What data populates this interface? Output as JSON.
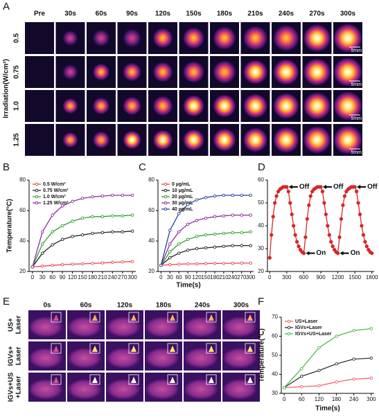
{
  "panel_a": {
    "panel": "A",
    "y_label": "Irradiation(W/cm²)",
    "columns": [
      "Pre",
      "30s",
      "60s",
      "90s",
      "120s",
      "150s",
      "180s",
      "210s",
      "240s",
      "270s",
      "300s"
    ],
    "rows": [
      "0.5",
      "0.75",
      "1.0",
      "1.25"
    ],
    "scale_bar": "5mm"
  },
  "time_label": "Time(s)",
  "panel_e": {
    "panel": "E",
    "columns": [
      "0s",
      "60s",
      "120s",
      "180s",
      "240s",
      "300s"
    ],
    "rows": [
      [
        "US+",
        "Laser"
      ],
      [
        "IGVs+",
        "Laser"
      ],
      [
        "IGVs+US",
        "+Laser"
      ]
    ]
  },
  "chart_data": [
    {
      "type": "line",
      "panel": "B",
      "y_label": "Temperature(°C)",
      "legend": "upper left",
      "x": [
        0,
        30,
        60,
        90,
        120,
        150,
        180,
        210,
        240,
        270,
        300
      ],
      "xlim": [
        -10,
        310
      ],
      "ylim": [
        20,
        80
      ],
      "xticks": [
        0,
        30,
        60,
        90,
        120,
        150,
        180,
        210,
        240,
        270,
        300
      ],
      "yticks": [
        20,
        40,
        60,
        80
      ],
      "series": [
        {
          "name": "0.5 W/cm²",
          "color": "#e8474c",
          "values": [
            23,
            23.5,
            24,
            24.5,
            24.8,
            25,
            25.3,
            25.6,
            26,
            26.3,
            26.5
          ]
        },
        {
          "name": "0.75 W/cm²",
          "color": "#222222",
          "values": [
            23,
            32,
            37.5,
            41,
            43,
            44,
            45,
            45.5,
            46,
            46,
            46.5
          ]
        },
        {
          "name": "1.0 W/cm²",
          "color": "#2ca02c",
          "values": [
            23,
            38,
            46,
            50,
            53,
            55,
            56,
            56,
            56.5,
            56.5,
            57
          ]
        },
        {
          "name": "1.25 W/cm²",
          "color": "#8e2a9e",
          "values": [
            23,
            46,
            57,
            63,
            66,
            68,
            69,
            69.5,
            70,
            70,
            70
          ]
        }
      ]
    },
    {
      "type": "line",
      "panel": "C",
      "legend": "upper left",
      "x": [
        0,
        30,
        60,
        90,
        120,
        150,
        180,
        210,
        240,
        270,
        300
      ],
      "xlim": [
        -10,
        310
      ],
      "ylim": [
        20,
        80
      ],
      "xticks": [
        0,
        30,
        60,
        90,
        120,
        150,
        180,
        210,
        240,
        270,
        300
      ],
      "yticks": [
        20,
        40,
        60,
        80
      ],
      "series": [
        {
          "name": "0 µg/mL",
          "color": "#e8474c",
          "values": [
            24,
            24.5,
            24.8,
            25,
            25,
            25.2,
            25.3,
            25.3,
            25.4,
            25.5,
            25.5
          ]
        },
        {
          "name": "10 µg/mL",
          "color": "#222222",
          "values": [
            24,
            29,
            32,
            34,
            35,
            35.5,
            36,
            36.5,
            37,
            37,
            37
          ]
        },
        {
          "name": "20 µg/mL",
          "color": "#2ca02c",
          "values": [
            24,
            33,
            38,
            41,
            43,
            44,
            44.5,
            45,
            45.5,
            45.5,
            46
          ]
        },
        {
          "name": "30 µg/mL",
          "color": "#8e2a9e",
          "values": [
            24,
            38,
            46,
            51,
            53.5,
            55,
            56,
            56.5,
            57,
            57,
            57
          ]
        },
        {
          "name": "40 µg/mL",
          "color": "#2a3f9e",
          "values": [
            24,
            47,
            58,
            64,
            67,
            68.5,
            69.5,
            70,
            70,
            70,
            70
          ]
        }
      ]
    },
    {
      "type": "line",
      "panel": "D",
      "annotations": [
        "Off",
        "On",
        "Off",
        "On",
        "Off"
      ],
      "x": [
        0,
        30,
        60,
        90,
        120,
        150,
        180,
        210,
        240,
        270,
        300,
        330,
        360,
        390,
        420,
        450,
        480,
        510,
        540,
        570,
        600,
        630,
        660,
        690,
        720,
        750,
        780,
        810,
        840,
        870,
        900,
        930,
        960,
        990,
        1020,
        1050,
        1080,
        1110,
        1140,
        1170,
        1200,
        1230,
        1260,
        1290,
        1320,
        1350,
        1380,
        1410,
        1440,
        1470,
        1500,
        1530,
        1560,
        1590,
        1620,
        1650,
        1680,
        1710,
        1740,
        1770,
        1800
      ],
      "xlim": [
        -40,
        1840
      ],
      "ylim": [
        20,
        60
      ],
      "xticks": [
        0,
        300,
        600,
        900,
        1200,
        1500,
        1800
      ],
      "yticks": [
        20,
        30,
        40,
        50,
        60
      ],
      "series": [
        {
          "color": "#d62728",
          "values": [
            26,
            36,
            44,
            50,
            53,
            55,
            56,
            56.5,
            57,
            57,
            57,
            55,
            50,
            45,
            40,
            36,
            33,
            31,
            29.5,
            28.5,
            28,
            35,
            43,
            49,
            53,
            55,
            56,
            56.5,
            57,
            57,
            57,
            55,
            50,
            45,
            40,
            36,
            33,
            31,
            29.5,
            28.5,
            28,
            35,
            43,
            49,
            53,
            55,
            56,
            56.5,
            57,
            57,
            57,
            55,
            50,
            45,
            40,
            36,
            33,
            31,
            29.5,
            28.5,
            28
          ]
        }
      ]
    },
    {
      "type": "line",
      "panel": "F",
      "y_label": "Temperature(℃)",
      "x_label": "Time(s)",
      "legend": "upper left",
      "x": [
        0,
        60,
        120,
        180,
        240,
        300
      ],
      "xlim": [
        -10,
        310
      ],
      "ylim": [
        30,
        70
      ],
      "xticks": [
        0,
        60,
        120,
        180,
        240,
        300
      ],
      "yticks": [
        30,
        40,
        50,
        60,
        70
      ],
      "series": [
        {
          "name": "US+Laser",
          "color": "#f0606a",
          "values": [
            33,
            33.5,
            34,
            36,
            37.5,
            38
          ]
        },
        {
          "name": "IGVs+Laser",
          "color": "#333333",
          "values": [
            33,
            39,
            42,
            45.5,
            48,
            48.5
          ]
        },
        {
          "name": "IGVs+US+Laser",
          "color": "#4cbb4c",
          "values": [
            33,
            43,
            54,
            60,
            63,
            64
          ]
        }
      ]
    }
  ]
}
